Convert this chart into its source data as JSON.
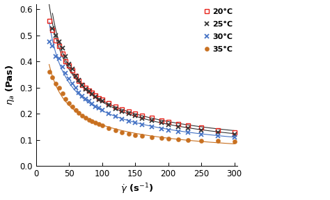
{
  "title": "",
  "xlabel": "$\\dot{\\gamma}$ (s$^{-1}$)",
  "ylabel": "$\\eta_a$ (Pas)",
  "xlim": [
    10,
    305
  ],
  "ylim": [
    0.0,
    0.62
  ],
  "xticks": [
    0,
    50,
    100,
    150,
    200,
    250,
    300
  ],
  "yticks": [
    0.0,
    0.1,
    0.2,
    0.3,
    0.4,
    0.5,
    0.6
  ],
  "series": [
    {
      "label": "20°C",
      "color": "#e8231a",
      "line_color": "#333333",
      "marker": "s",
      "fillstyle": "none",
      "markersize": 4.5,
      "x": [
        20,
        25,
        30,
        35,
        40,
        45,
        50,
        55,
        60,
        65,
        70,
        75,
        80,
        85,
        90,
        95,
        100,
        110,
        120,
        130,
        140,
        150,
        160,
        175,
        190,
        200,
        215,
        230,
        250,
        275,
        300
      ],
      "y": [
        0.555,
        0.52,
        0.48,
        0.46,
        0.43,
        0.4,
        0.385,
        0.365,
        0.345,
        0.325,
        0.31,
        0.3,
        0.29,
        0.28,
        0.27,
        0.26,
        0.255,
        0.24,
        0.228,
        0.218,
        0.21,
        0.2,
        0.193,
        0.185,
        0.175,
        0.168,
        0.16,
        0.155,
        0.148,
        0.138,
        0.13
      ]
    },
    {
      "label": "25°C",
      "color": "#333333",
      "line_color": "#333333",
      "marker": "x",
      "fillstyle": "full",
      "markersize": 5,
      "x": [
        25,
        30,
        35,
        40,
        45,
        50,
        55,
        60,
        65,
        70,
        75,
        80,
        85,
        90,
        95,
        100,
        110,
        120,
        130,
        140,
        150,
        160,
        175,
        190,
        200,
        215,
        230,
        250,
        275,
        300
      ],
      "y": [
        0.525,
        0.5,
        0.475,
        0.45,
        0.42,
        0.39,
        0.37,
        0.345,
        0.328,
        0.31,
        0.295,
        0.285,
        0.275,
        0.265,
        0.255,
        0.248,
        0.232,
        0.22,
        0.21,
        0.2,
        0.192,
        0.182,
        0.173,
        0.165,
        0.158,
        0.15,
        0.145,
        0.138,
        0.13,
        0.122
      ]
    },
    {
      "label": "30°C",
      "color": "#4472c4",
      "line_color": "#4472c4",
      "marker": "x",
      "fillstyle": "full",
      "markersize": 5,
      "x": [
        20,
        25,
        30,
        35,
        40,
        45,
        50,
        55,
        60,
        65,
        70,
        75,
        80,
        85,
        90,
        95,
        100,
        110,
        120,
        130,
        140,
        150,
        160,
        175,
        190,
        200,
        215,
        230,
        250,
        275,
        300
      ],
      "y": [
        0.475,
        0.46,
        0.42,
        0.41,
        0.38,
        0.355,
        0.335,
        0.315,
        0.298,
        0.28,
        0.268,
        0.258,
        0.248,
        0.238,
        0.228,
        0.222,
        0.215,
        0.2,
        0.19,
        0.18,
        0.172,
        0.165,
        0.158,
        0.15,
        0.143,
        0.138,
        0.132,
        0.128,
        0.122,
        0.115,
        0.11
      ]
    },
    {
      "label": "35°C",
      "color": "#c87020",
      "line_color": "#c87020",
      "marker": "o",
      "fillstyle": "full",
      "markersize": 4.5,
      "x": [
        20,
        25,
        30,
        35,
        40,
        45,
        50,
        55,
        60,
        65,
        70,
        75,
        80,
        85,
        90,
        95,
        100,
        110,
        120,
        130,
        140,
        150,
        160,
        175,
        190,
        200,
        215,
        230,
        250,
        275,
        300
      ],
      "y": [
        0.36,
        0.34,
        0.315,
        0.3,
        0.278,
        0.258,
        0.242,
        0.228,
        0.215,
        0.203,
        0.193,
        0.185,
        0.178,
        0.172,
        0.165,
        0.16,
        0.155,
        0.145,
        0.137,
        0.13,
        0.124,
        0.118,
        0.115,
        0.11,
        0.107,
        0.104,
        0.102,
        0.1,
        0.098,
        0.097,
        0.095
      ]
    }
  ],
  "background_color": "#ffffff",
  "figsize": [
    4.74,
    2.87
  ],
  "dpi": 100
}
